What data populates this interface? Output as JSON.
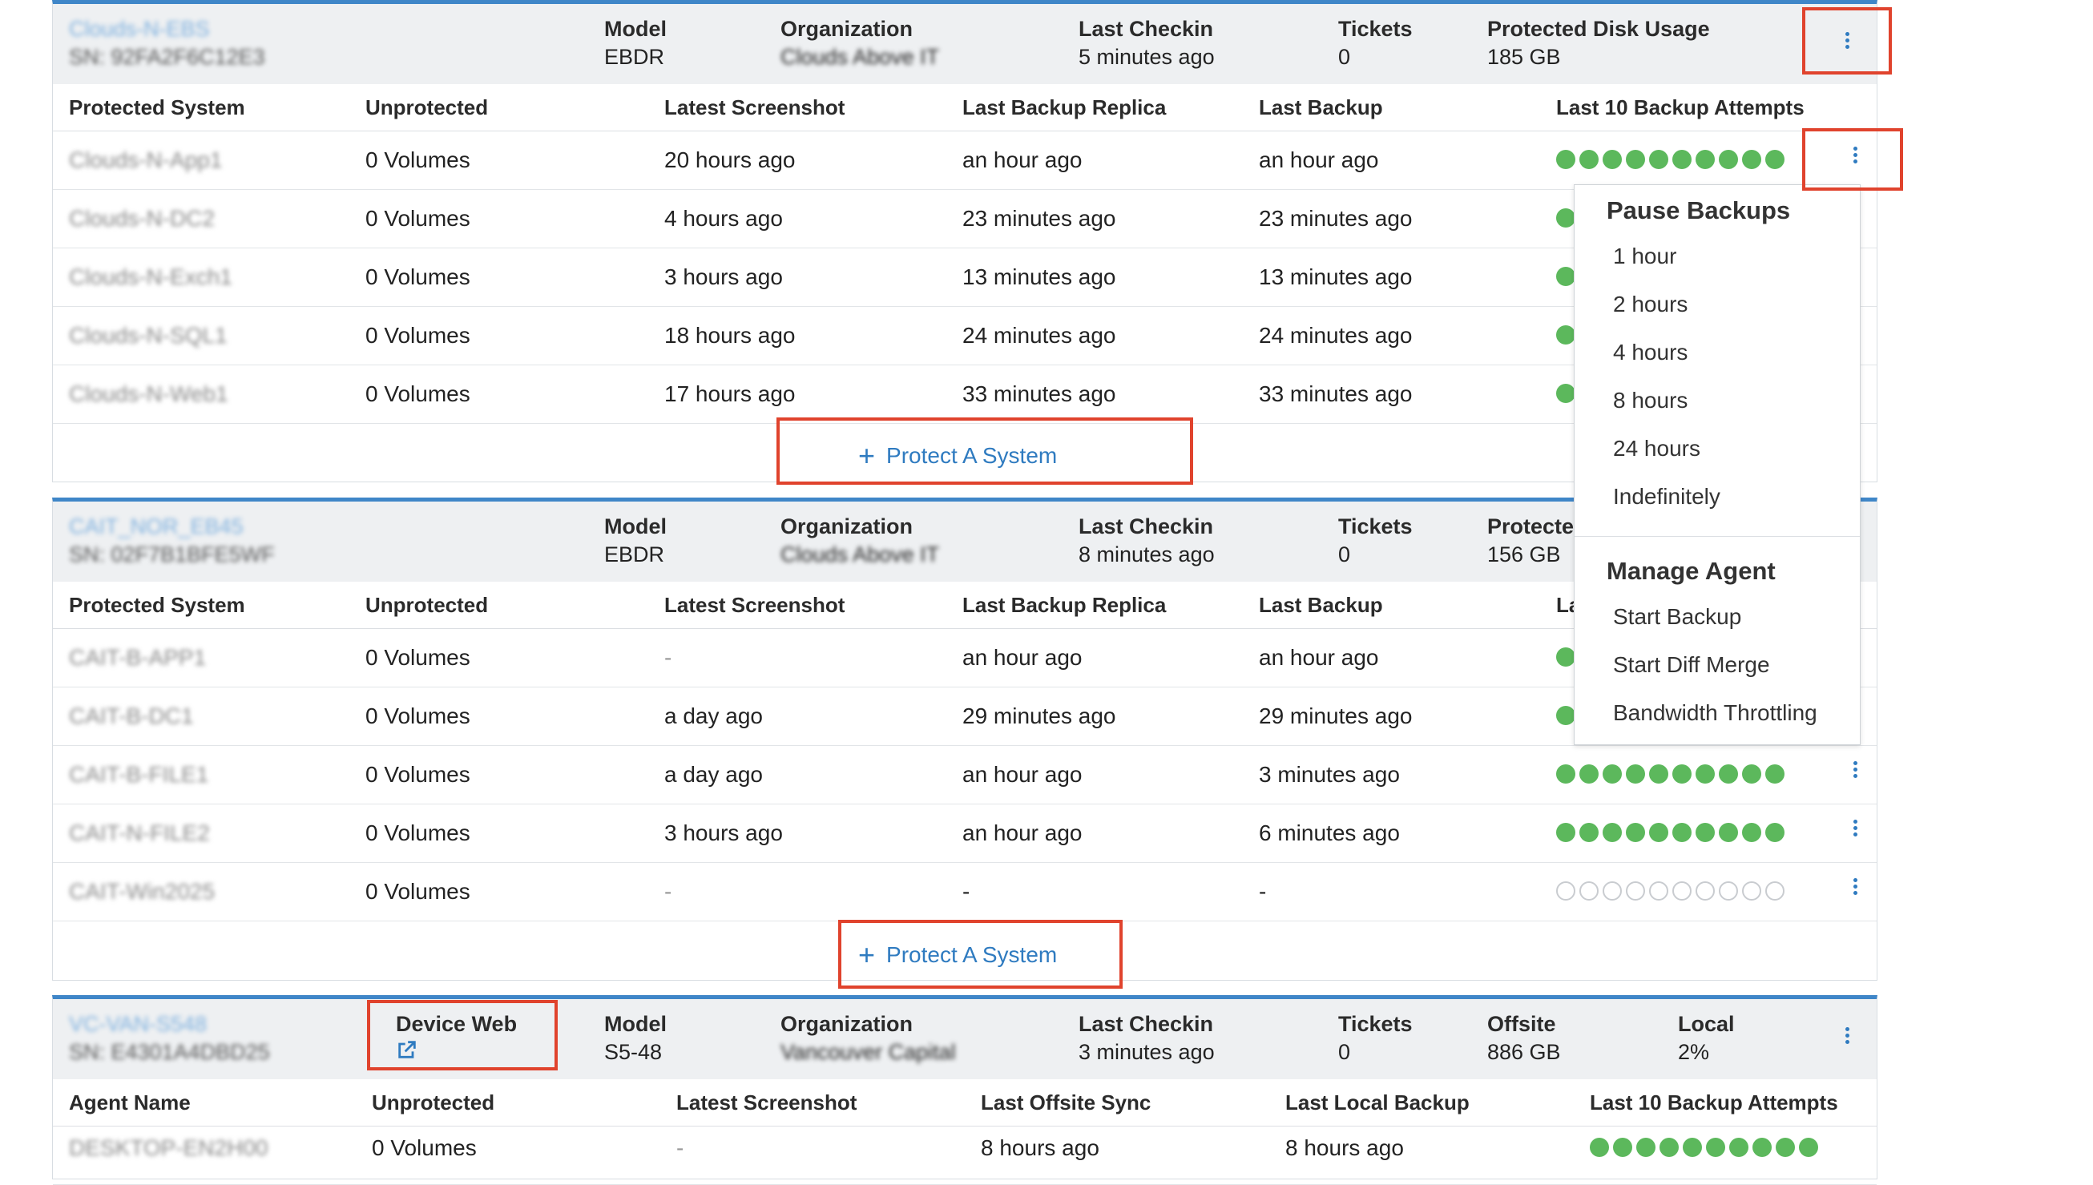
{
  "devices": [
    {
      "name": "Clouds-N-EBS",
      "serial": "SN: 92FA2F6C12E3",
      "header": [
        {
          "label": "Model",
          "value": "EBDR"
        },
        {
          "label": "Organization",
          "value": "Clouds Above IT"
        },
        {
          "label": "Last Checkin",
          "value": "5 minutes ago"
        },
        {
          "label": "Tickets",
          "value": "0"
        },
        {
          "label": "Protected Disk Usage",
          "value": "185 GB"
        }
      ],
      "columns": [
        "Protected System",
        "Unprotected",
        "Latest Screenshot",
        "Last Backup Replica",
        "Last Backup",
        "Last 10 Backup Attempts"
      ],
      "rows": [
        {
          "system": "Clouds-N-App1",
          "unprotected": "0 Volumes",
          "screenshot": "20 hours ago",
          "replica": "an hour ago",
          "backup": "an hour ago",
          "attempts": "ok"
        },
        {
          "system": "Clouds-N-DC2",
          "unprotected": "0 Volumes",
          "screenshot": "4 hours ago",
          "replica": "23 minutes ago",
          "backup": "23 minutes ago",
          "attempts": "ok"
        },
        {
          "system": "Clouds-N-Exch1",
          "unprotected": "0 Volumes",
          "screenshot": "3 hours ago",
          "replica": "13 minutes ago",
          "backup": "13 minutes ago",
          "attempts": "ok"
        },
        {
          "system": "Clouds-N-SQL1",
          "unprotected": "0 Volumes",
          "screenshot": "18 hours ago",
          "replica": "24 minutes ago",
          "backup": "24 minutes ago",
          "attempts": "ok"
        },
        {
          "system": "Clouds-N-Web1",
          "unprotected": "0 Volumes",
          "screenshot": "17 hours ago",
          "replica": "33 minutes ago",
          "backup": "33 minutes ago",
          "attempts": "ok"
        }
      ],
      "protect_label": "Protect A System"
    },
    {
      "name": "CAIT_NOR_EB45",
      "serial": "SN: 02F7B1BFE5WF",
      "header": [
        {
          "label": "Model",
          "value": "EBDR"
        },
        {
          "label": "Organization",
          "value": "Clouds Above IT"
        },
        {
          "label": "Last Checkin",
          "value": "8 minutes ago"
        },
        {
          "label": "Tickets",
          "value": "0"
        },
        {
          "label": "Protecte",
          "value": "156 GB"
        }
      ],
      "columns": [
        "Protected System",
        "Unprotected",
        "Latest Screenshot",
        "Last Backup Replica",
        "Last Backup",
        "La"
      ],
      "rows": [
        {
          "system": "CAIT-B-APP1",
          "unprotected": "0 Volumes",
          "screenshot": "-",
          "replica": "an hour ago",
          "backup": "an hour ago",
          "attempts": "ok"
        },
        {
          "system": "CAIT-B-DC1",
          "unprotected": "0 Volumes",
          "screenshot": "a day ago",
          "replica": "29 minutes ago",
          "backup": "29 minutes ago",
          "attempts": "ok"
        },
        {
          "system": "CAIT-B-FILE1",
          "unprotected": "0 Volumes",
          "screenshot": "a day ago",
          "replica": "an hour ago",
          "backup": "3 minutes ago",
          "attempts": "ok"
        },
        {
          "system": "CAIT-N-FILE2",
          "unprotected": "0 Volumes",
          "screenshot": "3 hours ago",
          "replica": "an hour ago",
          "backup": "6 minutes ago",
          "attempts": "ok"
        },
        {
          "system": "CAIT-Win2025",
          "unprotected": "0 Volumes",
          "screenshot": "-",
          "replica": "-",
          "backup": "-",
          "attempts": "empty"
        }
      ],
      "protect_label": "Protect A System"
    },
    {
      "name": "VC-VAN-S548",
      "serial": "SN: E4301A4DBD25",
      "device_web": "Device Web",
      "header": [
        {
          "label": "Model",
          "value": "S5-48"
        },
        {
          "label": "Organization",
          "value": "Vancouver Capital"
        },
        {
          "label": "Last Checkin",
          "value": "3 minutes ago"
        },
        {
          "label": "Tickets",
          "value": "0"
        },
        {
          "label": "Offsite",
          "value": "886 GB"
        },
        {
          "label": "Local",
          "value": "2%"
        }
      ],
      "columns": [
        "Agent Name",
        "Unprotected",
        "Latest Screenshot",
        "Last Offsite Sync",
        "Last Local Backup",
        "Last 10 Backup Attempts"
      ],
      "rows": [
        {
          "system": "DESKTOP-EN2H00",
          "unprotected": "0 Volumes",
          "screenshot": "-",
          "replica": "8 hours ago",
          "backup": "8 hours ago",
          "attempts": "ok"
        }
      ]
    }
  ],
  "context_menu": {
    "pause_title": "Pause Backups",
    "pause_items": [
      "1 hour",
      "2 hours",
      "4 hours",
      "8 hours",
      "24 hours",
      "Indefinitely"
    ],
    "manage_title": "Manage Agent",
    "manage_items": [
      "Start Backup",
      "Start Diff Merge",
      "Bandwidth Throttling"
    ]
  },
  "icons": {
    "kebab": "vertical-ellipsis-icon",
    "plus": "plus-icon",
    "external": "external-link-icon"
  },
  "colors": {
    "accent": "#2f7bc0",
    "success": "#5cb85c",
    "highlight": "#e0432d",
    "header_bg": "#eef0f2"
  }
}
